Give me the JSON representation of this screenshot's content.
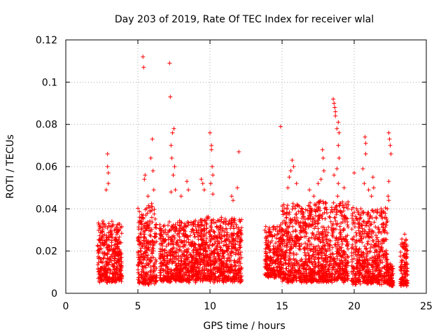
{
  "chart_data": {
    "type": "scatter",
    "title": "Day 203 of 2019, Rate Of TEC Index for receiver wlal",
    "xlabel": "GPS time / hours",
    "ylabel": "ROTI / TECUs",
    "xlim": [
      0,
      25
    ],
    "ylim": [
      0,
      0.12
    ],
    "grid": true,
    "marker": "+",
    "x_ticks": [
      "0",
      "5",
      "10",
      "15",
      "20",
      "25"
    ],
    "y_ticks": [
      "0",
      "0.02",
      "0.04",
      "0.06",
      "0.08",
      "0.1",
      "0.12"
    ],
    "series": [
      {
        "name": "ROTI",
        "color": "#ff0000",
        "clusters": [
          {
            "x_start": 2.2,
            "x_end": 3.9,
            "y_base": 0.006,
            "y_top": 0.034
          },
          {
            "x_start": 5.0,
            "x_end": 6.3,
            "y_base": 0.005,
            "y_top": 0.042
          },
          {
            "x_start": 6.5,
            "x_end": 9.3,
            "y_base": 0.006,
            "y_top": 0.034
          },
          {
            "x_start": 9.3,
            "x_end": 12.2,
            "y_base": 0.006,
            "y_top": 0.036
          },
          {
            "x_start": 13.8,
            "x_end": 15.0,
            "y_base": 0.008,
            "y_top": 0.032
          },
          {
            "x_start": 15.0,
            "x_end": 17.2,
            "y_base": 0.006,
            "y_top": 0.042
          },
          {
            "x_start": 17.2,
            "x_end": 19.6,
            "y_base": 0.006,
            "y_top": 0.044
          },
          {
            "x_start": 19.8,
            "x_end": 22.3,
            "y_base": 0.005,
            "y_top": 0.04
          },
          {
            "x_start": 22.3,
            "x_end": 22.7,
            "y_base": 0.004,
            "y_top": 0.014
          },
          {
            "x_start": 23.2,
            "x_end": 23.7,
            "y_base": 0.004,
            "y_top": 0.026
          }
        ],
        "outliers": [
          [
            2.9,
            0.066
          ],
          [
            2.9,
            0.06
          ],
          [
            2.95,
            0.057
          ],
          [
            2.95,
            0.052
          ],
          [
            2.8,
            0.049
          ],
          [
            5.35,
            0.112
          ],
          [
            5.4,
            0.107
          ],
          [
            5.45,
            0.054
          ],
          [
            5.5,
            0.056
          ],
          [
            6.0,
            0.073
          ],
          [
            5.9,
            0.064
          ],
          [
            6.05,
            0.058
          ],
          [
            6.1,
            0.049
          ],
          [
            5.7,
            0.046
          ],
          [
            7.2,
            0.109
          ],
          [
            7.25,
            0.093
          ],
          [
            7.5,
            0.078
          ],
          [
            7.4,
            0.076
          ],
          [
            7.3,
            0.07
          ],
          [
            7.35,
            0.064
          ],
          [
            7.55,
            0.06
          ],
          [
            7.45,
            0.056
          ],
          [
            7.6,
            0.049
          ],
          [
            7.3,
            0.048
          ],
          [
            8.4,
            0.053
          ],
          [
            8.5,
            0.049
          ],
          [
            8.0,
            0.046
          ],
          [
            9.4,
            0.054
          ],
          [
            9.5,
            0.052
          ],
          [
            9.6,
            0.049
          ],
          [
            10.0,
            0.076
          ],
          [
            10.1,
            0.07
          ],
          [
            10.1,
            0.068
          ],
          [
            10.15,
            0.06
          ],
          [
            10.2,
            0.056
          ],
          [
            10.05,
            0.052
          ],
          [
            10.2,
            0.047
          ],
          [
            11.5,
            0.046
          ],
          [
            11.6,
            0.044
          ],
          [
            11.9,
            0.05
          ],
          [
            12.0,
            0.067
          ],
          [
            14.9,
            0.079
          ],
          [
            15.5,
            0.055
          ],
          [
            15.6,
            0.058
          ],
          [
            15.7,
            0.063
          ],
          [
            15.8,
            0.06
          ],
          [
            16.0,
            0.052
          ],
          [
            15.4,
            0.05
          ],
          [
            16.9,
            0.049
          ],
          [
            17.2,
            0.046
          ],
          [
            17.5,
            0.052
          ],
          [
            17.8,
            0.068
          ],
          [
            17.85,
            0.064
          ],
          [
            17.9,
            0.058
          ],
          [
            17.7,
            0.054
          ],
          [
            18.55,
            0.092
          ],
          [
            18.6,
            0.09
          ],
          [
            18.65,
            0.088
          ],
          [
            18.7,
            0.086
          ],
          [
            18.7,
            0.084
          ],
          [
            18.8,
            0.078
          ],
          [
            18.9,
            0.081
          ],
          [
            18.95,
            0.076
          ],
          [
            18.9,
            0.07
          ],
          [
            18.95,
            0.064
          ],
          [
            18.8,
            0.059
          ],
          [
            18.9,
            0.052
          ],
          [
            19.3,
            0.05
          ],
          [
            18.6,
            0.056
          ],
          [
            18.85,
            0.046
          ],
          [
            20.0,
            0.057
          ],
          [
            20.6,
            0.059
          ],
          [
            20.7,
            0.052
          ],
          [
            20.75,
            0.074
          ],
          [
            20.8,
            0.071
          ],
          [
            20.8,
            0.066
          ],
          [
            21.0,
            0.049
          ],
          [
            21.3,
            0.055
          ],
          [
            21.35,
            0.05
          ],
          [
            21.2,
            0.046
          ],
          [
            22.4,
            0.076
          ],
          [
            22.45,
            0.073
          ],
          [
            22.5,
            0.07
          ],
          [
            22.55,
            0.066
          ],
          [
            22.4,
            0.053
          ],
          [
            22.35,
            0.046
          ],
          [
            22.4,
            0.044
          ],
          [
            23.5,
            0.028
          ]
        ]
      }
    ]
  }
}
